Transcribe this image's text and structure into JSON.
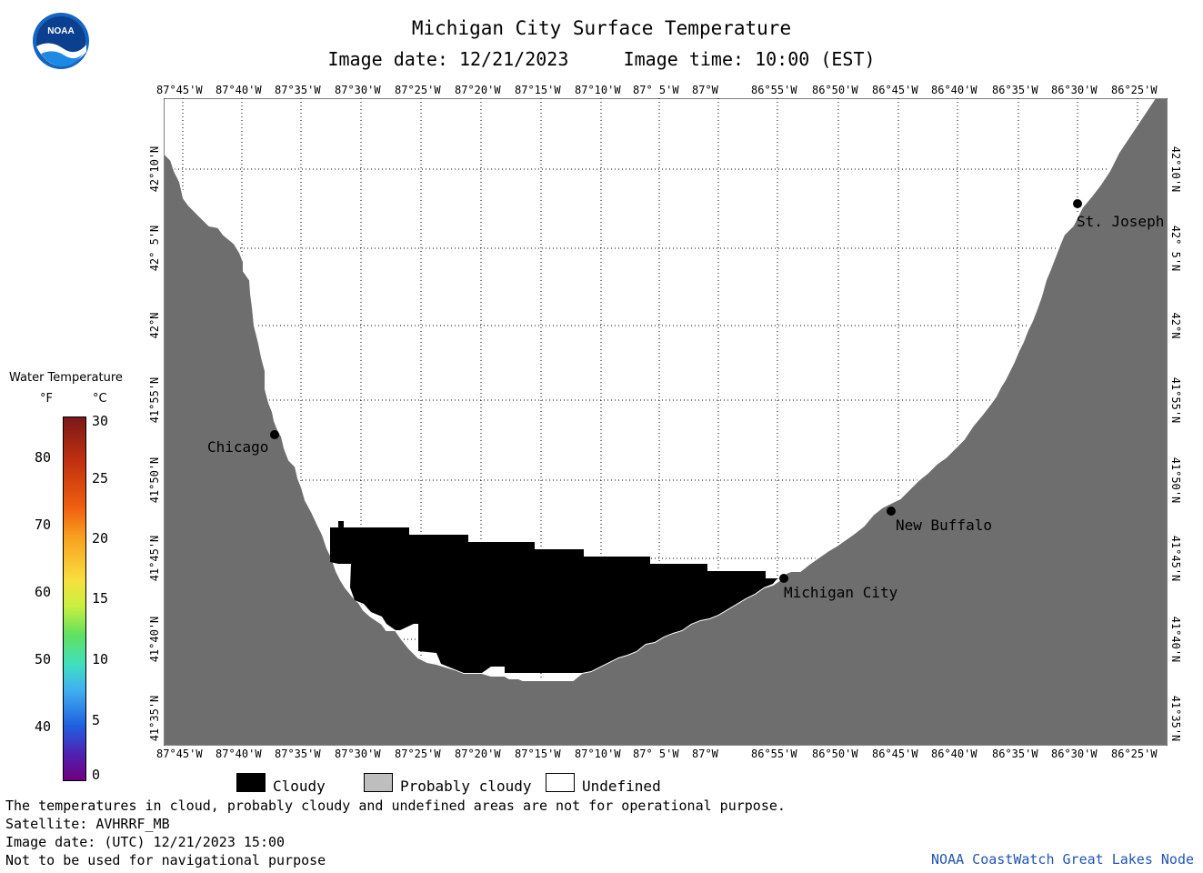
{
  "title": "Michigan City Surface Temperature",
  "image_date_label": "Image date:",
  "image_date": "12/21/2023",
  "image_time_label": "Image time:",
  "image_time": "10:00 (EST)",
  "logo_text": "NOAA",
  "lon_labels": [
    "87°45'W",
    "87°40'W",
    "87°35'W",
    "87°30'W",
    "87°25'W",
    "87°20'W",
    "87°15'W",
    "87°10'W",
    "87° 5'W",
    "87°W",
    "86°55'W",
    "86°50'W",
    "86°45'W",
    "86°40'W",
    "86°35'W",
    "86°30'W",
    "86°25'W"
  ],
  "lat_labels": [
    "42°10'N",
    "42° 5'N",
    "42°N",
    "41°55'N",
    "41°50'N",
    "41°45'N",
    "41°40'N",
    "41°35'N"
  ],
  "cities": [
    {
      "name": "Chicago"
    },
    {
      "name": "New Buffalo"
    },
    {
      "name": "Michigan City"
    },
    {
      "name": "St. Joseph"
    }
  ],
  "legend": {
    "title": "Water Temperature",
    "unit_f": "°F",
    "unit_c": "°C",
    "f_ticks": [
      "80",
      "70",
      "60",
      "50",
      "40"
    ],
    "c_ticks": [
      "30",
      "25",
      "20",
      "15",
      "10",
      "5",
      "0"
    ]
  },
  "key": [
    {
      "label": "Cloudy",
      "color": "#000000"
    },
    {
      "label": "Probably cloudy",
      "color": "#bebebe"
    },
    {
      "label": "Undefined",
      "color": "#ffffff"
    }
  ],
  "footer": {
    "line1": "The temperatures in cloud, probably cloudy and undefined areas are not for operational purpose.",
    "line2": "Satellite: AVHRRF_MB",
    "line3": "Image date: (UTC) 12/21/2023  15:00",
    "line4": "Not to be used for navigational purpose",
    "credit": "NOAA CoastWatch Great Lakes Node"
  },
  "colors": {
    "land": "#6e6e6e",
    "cloud": "#000000",
    "water": "#ffffff",
    "logo_blue": "#1565c0",
    "credit": "#1f55b8"
  }
}
